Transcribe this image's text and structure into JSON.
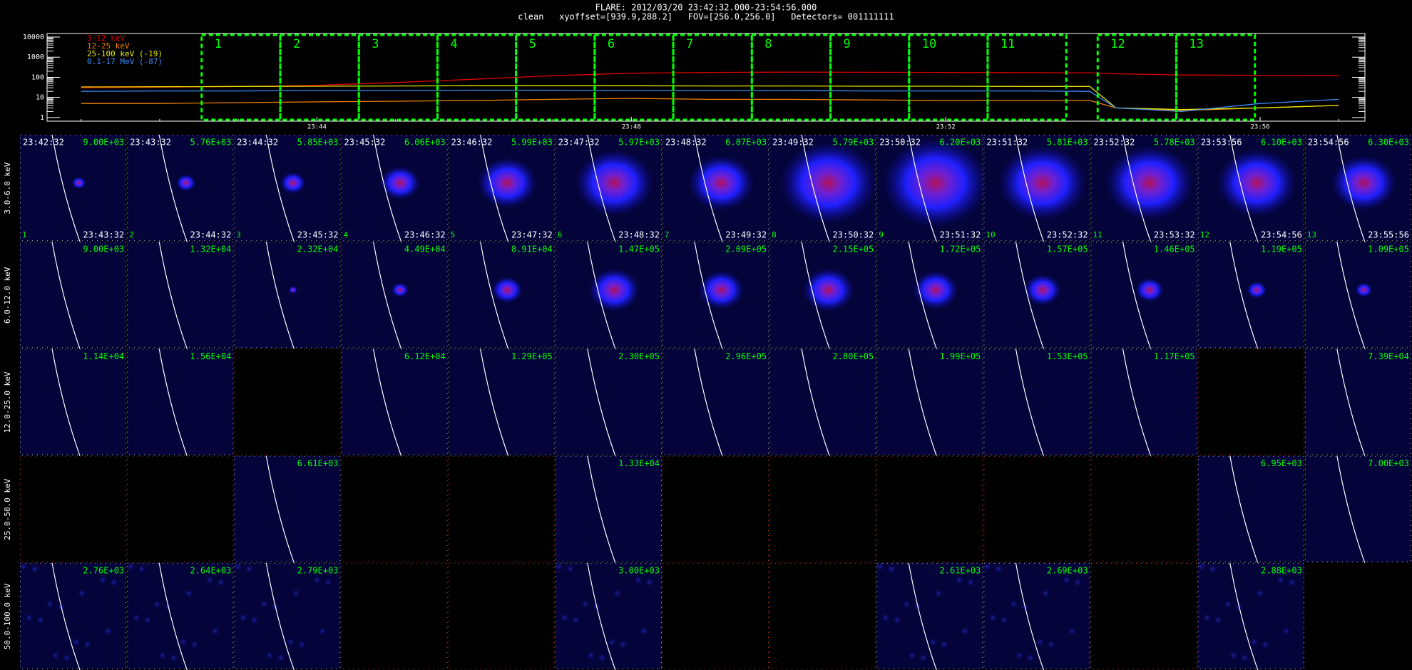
{
  "header": {
    "title": "FLARE: 2012/03/20 23:42:32.000-23:54:56.000",
    "subtitle": "clean   xyoffset=[939.9,288.2]   FOV=[256.0,256.0]   Detectors= 001111111"
  },
  "chart_data": {
    "type": "line",
    "log_y": true,
    "x": [
      "23:41",
      "23:42",
      "23:43",
      "23:44",
      "23:45",
      "23:46",
      "23:47",
      "23:48",
      "23:49",
      "23:50",
      "23:51",
      "23:52",
      "23:53",
      "23:53:50",
      "23:54:10",
      "23:55",
      "23:56",
      "23:57"
    ],
    "xlim": [
      "23:40:34",
      "23:57:20"
    ],
    "xticks": [
      "23:44",
      "23:48",
      "23:52",
      "23:56"
    ],
    "ylim": [
      0.66,
      15000
    ],
    "yticks": [
      1,
      10,
      100,
      1000,
      10000
    ],
    "interval_color": "#00ff00",
    "series": [
      {
        "name": "3-12 keV",
        "color": "#e00000",
        "values": [
          30,
          32,
          35,
          40,
          55,
          80,
          120,
          160,
          175,
          180,
          178,
          175,
          170,
          168,
          150,
          130,
          125,
          120
        ]
      },
      {
        "name": "12-25 keV",
        "color": "#f08000",
        "values": [
          5,
          5,
          5.5,
          6,
          6.5,
          7,
          8,
          9,
          8,
          8,
          7.5,
          7,
          7,
          7,
          3,
          2.2,
          3,
          4
        ]
      },
      {
        "name": "25-100 keV (-19)",
        "color": "#e8e800",
        "values": [
          33,
          34,
          35,
          36,
          37,
          38,
          38,
          38,
          37,
          37,
          36,
          36,
          35,
          35,
          3,
          2.5,
          3,
          4
        ]
      },
      {
        "name": "0.1-17 MeV (-87)",
        "color": "#3c8cff",
        "values": [
          20,
          21,
          21,
          22,
          22,
          23,
          23,
          22,
          22,
          22,
          21,
          21,
          21,
          20,
          3,
          2,
          5,
          8
        ]
      }
    ]
  },
  "image_grid": {
    "indices": [
      "1",
      "2",
      "3",
      "4",
      "5",
      "6",
      "7",
      "8",
      "9",
      "10",
      "11",
      "12",
      "13"
    ],
    "start_times": [
      "23:42:32",
      "23:43:32",
      "23:44:32",
      "23:45:32",
      "23:46:32",
      "23:47:32",
      "23:48:32",
      "23:49:32",
      "23:50:32",
      "23:51:32",
      "23:52:32",
      "23:53:56",
      "23:54:56"
    ],
    "end_times": [
      "23:43:32",
      "23:44:32",
      "23:45:32",
      "23:46:32",
      "23:47:32",
      "23:48:32",
      "23:49:32",
      "23:50:32",
      "23:51:32",
      "23:52:32",
      "23:53:32",
      "23:54:56",
      "23:55:56"
    ],
    "rows": [
      {
        "label": "3.0-6.0 keV",
        "peaks": [
          "9.00E+03",
          "5.76E+03",
          "5.85E+03",
          "6.06E+03",
          "5.99E+03",
          "5.97E+03",
          "6.07E+03",
          "5.79E+03",
          "6.20E+03",
          "5.81E+03",
          "5.78E+03",
          "6.10E+03",
          "6.30E+03"
        ]
      },
      {
        "label": "6.0-12.0 keV",
        "peaks": [
          "9.00E+03",
          "1.32E+04",
          "2.32E+04",
          "4.49E+04",
          "8.91E+04",
          "1.47E+05",
          "2.09E+05",
          "2.15E+05",
          "1.72E+05",
          "1.57E+05",
          "1.46E+05",
          "1.19E+05",
          "1.09E+05"
        ]
      },
      {
        "label": "12.0-25.0 keV",
        "peaks": [
          "1.14E+04",
          "1.56E+04",
          null,
          "6.12E+04",
          "1.29E+05",
          "2.30E+05",
          "2.96E+05",
          "2.80E+05",
          "1.99E+05",
          "1.53E+05",
          "1.17E+05",
          null,
          "7.39E+04"
        ]
      },
      {
        "label": "25.0-50.0 keV",
        "peaks": [
          null,
          null,
          "6.61E+03",
          null,
          null,
          "1.33E+04",
          null,
          null,
          null,
          null,
          null,
          "6.95E+03",
          "7.00E+03"
        ]
      },
      {
        "label": "50.0-100.0 keV",
        "peaks": [
          "2.76E+03",
          "2.64E+03",
          "2.79E+03",
          null,
          null,
          "3.00E+03",
          null,
          null,
          "2.61E+03",
          "2.69E+03",
          null,
          "2.88E+03",
          null
        ]
      }
    ]
  }
}
